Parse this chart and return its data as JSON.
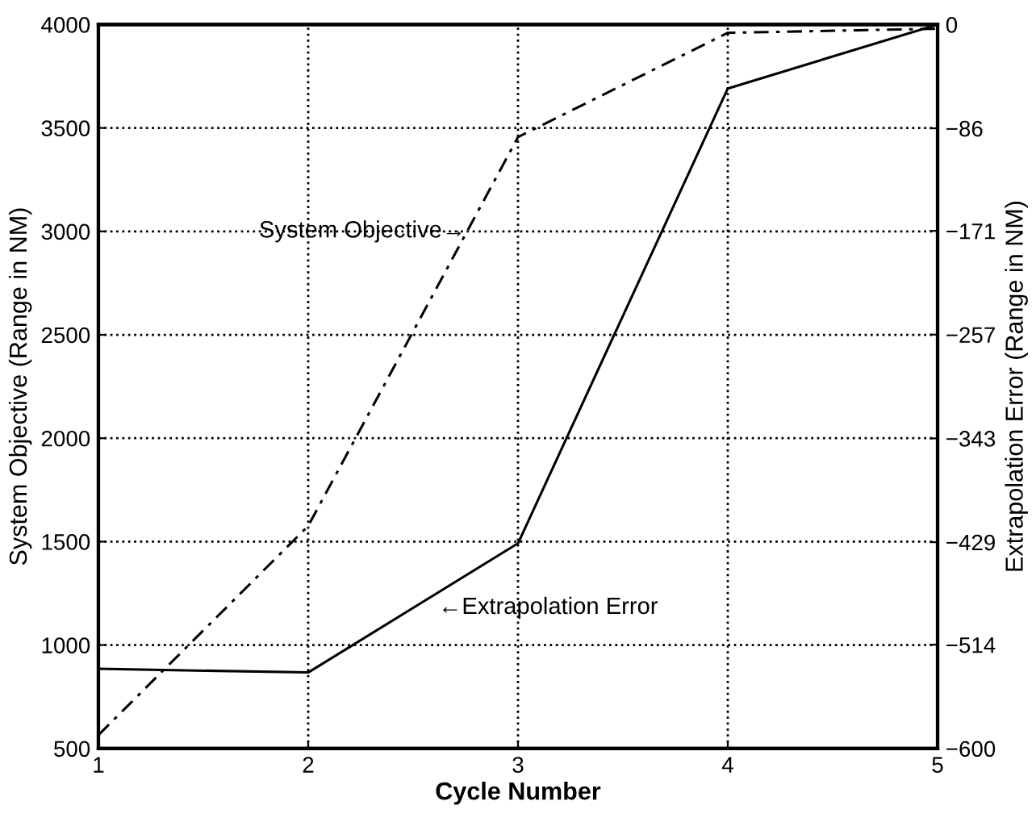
{
  "chart_data": {
    "type": "line",
    "xlabel": "Cycle Number",
    "ylabel": "System Objective (Range in NM)",
    "y2label": "Extrapolation Error (Range in NM)",
    "x": [
      1,
      2,
      3,
      4,
      5
    ],
    "series": [
      {
        "color": "#000000",
        "line_style": "dashed",
        "values": [
          565,
          1576,
          3456,
          3960,
          3980
        ]
      },
      {
        "color": "#000000",
        "line_style": "solid",
        "axis": "y2",
        "values": [
          -534,
          -537,
          -430,
          -53,
          0
        ]
      }
    ],
    "xlim": [
      1,
      5
    ],
    "xticks": [
      1,
      2,
      3,
      4,
      5
    ],
    "ylim": [
      500,
      4000
    ],
    "yticks": [
      500,
      1000,
      1500,
      2000,
      2500,
      3000,
      3500,
      4000
    ],
    "y2lim": [
      -600,
      0
    ],
    "y2ticks": [
      -600,
      -514,
      -429,
      -343,
      -257,
      -171,
      -86,
      0
    ],
    "grid": true,
    "marker": "none",
    "annotations": [
      "System Objective→",
      "←Extrapolation Error"
    ]
  }
}
